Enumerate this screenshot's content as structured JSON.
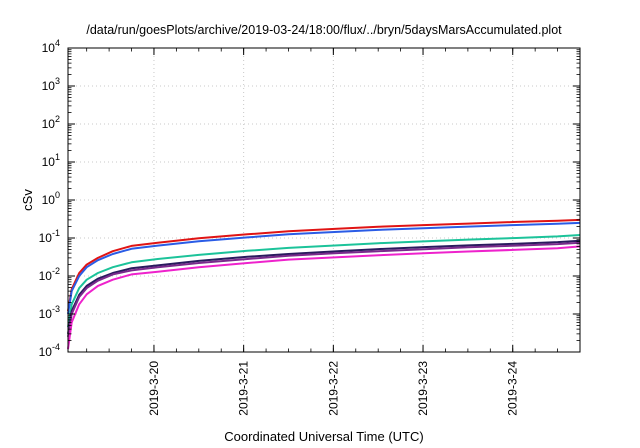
{
  "chart_data": {
    "type": "line",
    "title": "/data/run/goesPlots/archive/2019-03-24/18:00/flux/../bryn/5daysMarsAccumulated.plot",
    "xlabel": "Coordinated Universal Time (UTC)",
    "ylabel": "cSv",
    "x_unit": "days (UTC)",
    "xlim": [
      "2019-03-19 01:00",
      "2019-03-24 18:00"
    ],
    "x_ticks": [
      "2019-3-20",
      "2019-3-21",
      "2019-3-22",
      "2019-3-23",
      "2019-3-24"
    ],
    "y_scale": "log",
    "ylim": [
      0.0001,
      10000
    ],
    "y_ticks": [
      {
        "base": "10",
        "exp": "-4"
      },
      {
        "base": "10",
        "exp": "-3"
      },
      {
        "base": "10",
        "exp": "-2"
      },
      {
        "base": "10",
        "exp": "-1"
      },
      {
        "base": "10",
        "exp": "0"
      },
      {
        "base": "10",
        "exp": "1"
      },
      {
        "base": "10",
        "exp": "2"
      },
      {
        "base": "10",
        "exp": "3"
      },
      {
        "base": "10",
        "exp": "4"
      }
    ],
    "grid": true,
    "x": [
      "2019-03-19 01:00",
      "2019-03-19 02:00",
      "2019-03-19 04:00",
      "2019-03-19 06:00",
      "2019-03-19 09:00",
      "2019-03-19 13:00",
      "2019-03-19 18:00",
      "2019-03-20 01:00",
      "2019-03-20 12:00",
      "2019-03-21 01:00",
      "2019-03-21 12:00",
      "2019-03-22 01:00",
      "2019-03-22 12:00",
      "2019-03-23 01:00",
      "2019-03-23 12:00",
      "2019-03-24 01:00",
      "2019-03-24 12:00",
      "2019-03-24 18:00"
    ],
    "series": [
      {
        "color": "#e01414",
        "values": [
          0.0012,
          0.0045,
          0.012,
          0.02,
          0.03,
          0.045,
          0.062,
          0.075,
          0.098,
          0.125,
          0.15,
          0.175,
          0.198,
          0.22,
          0.24,
          0.265,
          0.285,
          0.3
        ]
      },
      {
        "color": "#2a5ce6",
        "values": [
          0.001,
          0.004,
          0.01,
          0.017,
          0.026,
          0.038,
          0.052,
          0.063,
          0.082,
          0.104,
          0.125,
          0.145,
          0.163,
          0.182,
          0.2,
          0.22,
          0.238,
          0.25
        ]
      },
      {
        "color": "#1cc39a",
        "values": [
          0.00045,
          0.0018,
          0.0048,
          0.008,
          0.012,
          0.017,
          0.023,
          0.028,
          0.036,
          0.046,
          0.055,
          0.064,
          0.073,
          0.082,
          0.091,
          0.1,
          0.11,
          0.12
        ]
      },
      {
        "color": "#2a1a5e",
        "values": [
          0.0003,
          0.0012,
          0.0032,
          0.0055,
          0.0085,
          0.012,
          0.016,
          0.019,
          0.025,
          0.032,
          0.038,
          0.045,
          0.051,
          0.058,
          0.064,
          0.071,
          0.078,
          0.085
        ]
      },
      {
        "color": "#7a2a8c",
        "values": [
          0.00025,
          0.001,
          0.0028,
          0.0048,
          0.0075,
          0.011,
          0.014,
          0.017,
          0.022,
          0.028,
          0.034,
          0.04,
          0.045,
          0.051,
          0.057,
          0.063,
          0.069,
          0.075
        ]
      },
      {
        "color": "#ee22cc",
        "values": [
          0.00012,
          0.0006,
          0.0018,
          0.0033,
          0.0055,
          0.008,
          0.011,
          0.013,
          0.017,
          0.022,
          0.027,
          0.031,
          0.035,
          0.04,
          0.044,
          0.049,
          0.054,
          0.06
        ]
      }
    ]
  }
}
